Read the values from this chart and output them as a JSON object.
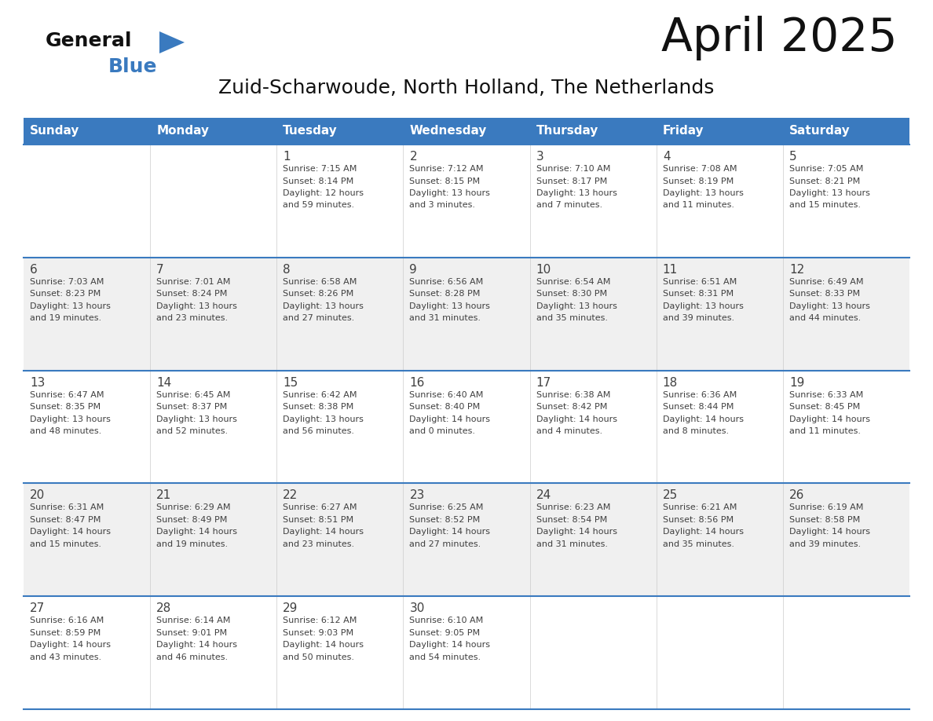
{
  "title": "April 2025",
  "subtitle": "Zuid-Scharwoude, North Holland, The Netherlands",
  "header_color": "#3a7abf",
  "header_text_color": "#ffffff",
  "bg_color": "#ffffff",
  "cell_bg_white": "#ffffff",
  "cell_bg_gray": "#f0f0f0",
  "border_color": "#3a7abf",
  "text_color": "#404040",
  "days_of_week": [
    "Sunday",
    "Monday",
    "Tuesday",
    "Wednesday",
    "Thursday",
    "Friday",
    "Saturday"
  ],
  "weeks": [
    [
      {
        "day": "",
        "sunrise": "",
        "sunset": "",
        "daylight": ""
      },
      {
        "day": "",
        "sunrise": "",
        "sunset": "",
        "daylight": ""
      },
      {
        "day": "1",
        "sunrise": "Sunrise: 7:15 AM",
        "sunset": "Sunset: 8:14 PM",
        "daylight": "Daylight: 12 hours\nand 59 minutes."
      },
      {
        "day": "2",
        "sunrise": "Sunrise: 7:12 AM",
        "sunset": "Sunset: 8:15 PM",
        "daylight": "Daylight: 13 hours\nand 3 minutes."
      },
      {
        "day": "3",
        "sunrise": "Sunrise: 7:10 AM",
        "sunset": "Sunset: 8:17 PM",
        "daylight": "Daylight: 13 hours\nand 7 minutes."
      },
      {
        "day": "4",
        "sunrise": "Sunrise: 7:08 AM",
        "sunset": "Sunset: 8:19 PM",
        "daylight": "Daylight: 13 hours\nand 11 minutes."
      },
      {
        "day": "5",
        "sunrise": "Sunrise: 7:05 AM",
        "sunset": "Sunset: 8:21 PM",
        "daylight": "Daylight: 13 hours\nand 15 minutes."
      }
    ],
    [
      {
        "day": "6",
        "sunrise": "Sunrise: 7:03 AM",
        "sunset": "Sunset: 8:23 PM",
        "daylight": "Daylight: 13 hours\nand 19 minutes."
      },
      {
        "day": "7",
        "sunrise": "Sunrise: 7:01 AM",
        "sunset": "Sunset: 8:24 PM",
        "daylight": "Daylight: 13 hours\nand 23 minutes."
      },
      {
        "day": "8",
        "sunrise": "Sunrise: 6:58 AM",
        "sunset": "Sunset: 8:26 PM",
        "daylight": "Daylight: 13 hours\nand 27 minutes."
      },
      {
        "day": "9",
        "sunrise": "Sunrise: 6:56 AM",
        "sunset": "Sunset: 8:28 PM",
        "daylight": "Daylight: 13 hours\nand 31 minutes."
      },
      {
        "day": "10",
        "sunrise": "Sunrise: 6:54 AM",
        "sunset": "Sunset: 8:30 PM",
        "daylight": "Daylight: 13 hours\nand 35 minutes."
      },
      {
        "day": "11",
        "sunrise": "Sunrise: 6:51 AM",
        "sunset": "Sunset: 8:31 PM",
        "daylight": "Daylight: 13 hours\nand 39 minutes."
      },
      {
        "day": "12",
        "sunrise": "Sunrise: 6:49 AM",
        "sunset": "Sunset: 8:33 PM",
        "daylight": "Daylight: 13 hours\nand 44 minutes."
      }
    ],
    [
      {
        "day": "13",
        "sunrise": "Sunrise: 6:47 AM",
        "sunset": "Sunset: 8:35 PM",
        "daylight": "Daylight: 13 hours\nand 48 minutes."
      },
      {
        "day": "14",
        "sunrise": "Sunrise: 6:45 AM",
        "sunset": "Sunset: 8:37 PM",
        "daylight": "Daylight: 13 hours\nand 52 minutes."
      },
      {
        "day": "15",
        "sunrise": "Sunrise: 6:42 AM",
        "sunset": "Sunset: 8:38 PM",
        "daylight": "Daylight: 13 hours\nand 56 minutes."
      },
      {
        "day": "16",
        "sunrise": "Sunrise: 6:40 AM",
        "sunset": "Sunset: 8:40 PM",
        "daylight": "Daylight: 14 hours\nand 0 minutes."
      },
      {
        "day": "17",
        "sunrise": "Sunrise: 6:38 AM",
        "sunset": "Sunset: 8:42 PM",
        "daylight": "Daylight: 14 hours\nand 4 minutes."
      },
      {
        "day": "18",
        "sunrise": "Sunrise: 6:36 AM",
        "sunset": "Sunset: 8:44 PM",
        "daylight": "Daylight: 14 hours\nand 8 minutes."
      },
      {
        "day": "19",
        "sunrise": "Sunrise: 6:33 AM",
        "sunset": "Sunset: 8:45 PM",
        "daylight": "Daylight: 14 hours\nand 11 minutes."
      }
    ],
    [
      {
        "day": "20",
        "sunrise": "Sunrise: 6:31 AM",
        "sunset": "Sunset: 8:47 PM",
        "daylight": "Daylight: 14 hours\nand 15 minutes."
      },
      {
        "day": "21",
        "sunrise": "Sunrise: 6:29 AM",
        "sunset": "Sunset: 8:49 PM",
        "daylight": "Daylight: 14 hours\nand 19 minutes."
      },
      {
        "day": "22",
        "sunrise": "Sunrise: 6:27 AM",
        "sunset": "Sunset: 8:51 PM",
        "daylight": "Daylight: 14 hours\nand 23 minutes."
      },
      {
        "day": "23",
        "sunrise": "Sunrise: 6:25 AM",
        "sunset": "Sunset: 8:52 PM",
        "daylight": "Daylight: 14 hours\nand 27 minutes."
      },
      {
        "day": "24",
        "sunrise": "Sunrise: 6:23 AM",
        "sunset": "Sunset: 8:54 PM",
        "daylight": "Daylight: 14 hours\nand 31 minutes."
      },
      {
        "day": "25",
        "sunrise": "Sunrise: 6:21 AM",
        "sunset": "Sunset: 8:56 PM",
        "daylight": "Daylight: 14 hours\nand 35 minutes."
      },
      {
        "day": "26",
        "sunrise": "Sunrise: 6:19 AM",
        "sunset": "Sunset: 8:58 PM",
        "daylight": "Daylight: 14 hours\nand 39 minutes."
      }
    ],
    [
      {
        "day": "27",
        "sunrise": "Sunrise: 6:16 AM",
        "sunset": "Sunset: 8:59 PM",
        "daylight": "Daylight: 14 hours\nand 43 minutes."
      },
      {
        "day": "28",
        "sunrise": "Sunrise: 6:14 AM",
        "sunset": "Sunset: 9:01 PM",
        "daylight": "Daylight: 14 hours\nand 46 minutes."
      },
      {
        "day": "29",
        "sunrise": "Sunrise: 6:12 AM",
        "sunset": "Sunset: 9:03 PM",
        "daylight": "Daylight: 14 hours\nand 50 minutes."
      },
      {
        "day": "30",
        "sunrise": "Sunrise: 6:10 AM",
        "sunset": "Sunset: 9:05 PM",
        "daylight": "Daylight: 14 hours\nand 54 minutes."
      },
      {
        "day": "",
        "sunrise": "",
        "sunset": "",
        "daylight": ""
      },
      {
        "day": "",
        "sunrise": "",
        "sunset": "",
        "daylight": ""
      },
      {
        "day": "",
        "sunrise": "",
        "sunset": "",
        "daylight": ""
      }
    ]
  ]
}
